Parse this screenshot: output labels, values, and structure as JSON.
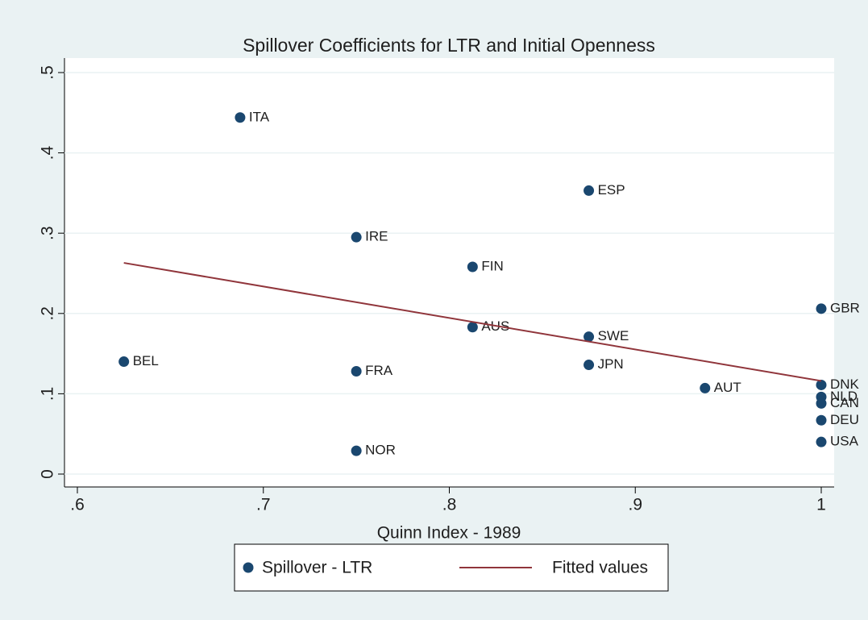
{
  "chart_data": {
    "type": "scatter",
    "title": "Spillover Coefficients for LTR and Initial Openness",
    "x_label": "Quinn Index - 1989",
    "xlim": [
      0.6,
      1.0
    ],
    "ylim": [
      0,
      0.5
    ],
    "xticks": [
      {
        "value": 0.6,
        "label": ".6"
      },
      {
        "value": 0.7,
        "label": ".7"
      },
      {
        "value": 0.8,
        "label": ".8"
      },
      {
        "value": 0.9,
        "label": ".9"
      },
      1
    ],
    "yticks": [
      0,
      {
        "value": 0.1,
        "label": ".1"
      },
      {
        "value": 0.2,
        "label": ".2"
      },
      {
        "value": 0.3,
        "label": ".3"
      },
      {
        "value": 0.4,
        "label": ".4"
      },
      {
        "value": 0.5,
        "label": ".5"
      }
    ],
    "grid": true,
    "series": [
      {
        "name": "Spillover - LTR",
        "type": "scatter",
        "color": "#1a476f",
        "labels": [
          "ITA",
          "ESP",
          "IRE",
          "FIN",
          "GBR",
          "AUS",
          "SWE",
          "BEL",
          "JPN",
          "FRA",
          "DNK",
          "AUT",
          "NLD",
          "CAN",
          "DEU",
          "USA",
          "NOR"
        ],
        "x": [
          0.6875,
          0.875,
          0.75,
          0.8125,
          1,
          0.8125,
          0.875,
          0.625,
          0.875,
          0.75,
          1,
          0.9375,
          1,
          1,
          1,
          1,
          0.75
        ],
        "values": [
          0.444,
          0.353,
          0.295,
          0.258,
          0.206,
          0.183,
          0.171,
          0.14,
          0.136,
          0.128,
          0.111,
          0.107,
          0.096,
          0.088,
          0.067,
          0.04,
          0.029
        ]
      },
      {
        "name": "Fitted values",
        "type": "line",
        "color": "#90353b",
        "x": [
          0.625,
          1
        ],
        "values": [
          0.263,
          0.116
        ]
      }
    ]
  }
}
